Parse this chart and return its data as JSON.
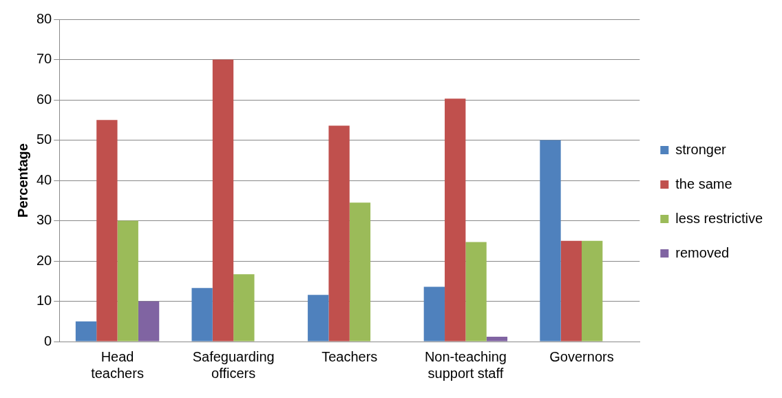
{
  "chart_data": {
    "type": "bar",
    "ylabel": "Percentage",
    "categories": [
      "Head teachers",
      "Safeguarding officers",
      "Teachers",
      "Non-teaching support staff",
      "Governors"
    ],
    "series": [
      {
        "name": "stronger",
        "color": "#4f81bd",
        "values": [
          5,
          13.3,
          11.6,
          13.6,
          50
        ]
      },
      {
        "name": "the same",
        "color": "#c0504d",
        "values": [
          55,
          70,
          53.6,
          60.3,
          25
        ]
      },
      {
        "name": "less restrictive",
        "color": "#9bbb59",
        "values": [
          30,
          16.7,
          34.5,
          24.7,
          25
        ]
      },
      {
        "name": "removed",
        "color": "#8064a2",
        "values": [
          10,
          null,
          null,
          1.2,
          null
        ]
      }
    ],
    "ylim": [
      0,
      80
    ],
    "yticks": [
      0,
      10,
      20,
      30,
      40,
      50,
      60,
      70,
      80
    ],
    "grid": "y",
    "legend": "right"
  }
}
